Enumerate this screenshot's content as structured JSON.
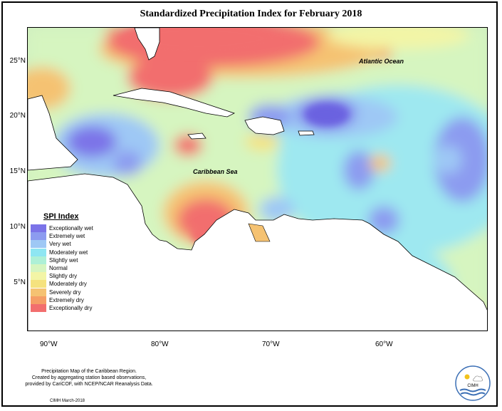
{
  "title": "Standardized Precipitation Index for February 2018",
  "axes": {
    "y_ticks": [
      "25°N",
      "20°N",
      "15°N",
      "10°N",
      "5°N"
    ],
    "x_ticks": [
      "90°W",
      "80°W",
      "70°W",
      "60°W"
    ]
  },
  "map_labels": {
    "atlantic": "Atlantic Ocean",
    "caribbean": "Caribbean Sea"
  },
  "legend": {
    "title": "SPI Index",
    "items": [
      {
        "label": "Exceptionally wet",
        "color": "#7b73e8"
      },
      {
        "label": "Extremely wet",
        "color": "#8c9bf0"
      },
      {
        "label": "Very wet",
        "color": "#9ec8f5"
      },
      {
        "label": "Moderately wet",
        "color": "#8ee6f2"
      },
      {
        "label": "Slightly wet",
        "color": "#aef0d6"
      },
      {
        "label": "Normal",
        "color": "#d6f5c0"
      },
      {
        "label": "Slightly dry",
        "color": "#f3f5a6"
      },
      {
        "label": "Moderately dry",
        "color": "#f5e27e"
      },
      {
        "label": "Severely dry",
        "color": "#f5c272"
      },
      {
        "label": "Extremely dry",
        "color": "#f59e66"
      },
      {
        "label": "Exceptionally dry",
        "color": "#f26e6e"
      }
    ]
  },
  "credits": {
    "line1": "Precipitation Map of the Caribbean Region.",
    "line2": "Created by aggregating station based observations,",
    "line3": "provided by CariCOF, with NCEP/NCAR Reanalysis Data.",
    "footer": "CIMH March-2018",
    "logo_text": "CIMH"
  }
}
